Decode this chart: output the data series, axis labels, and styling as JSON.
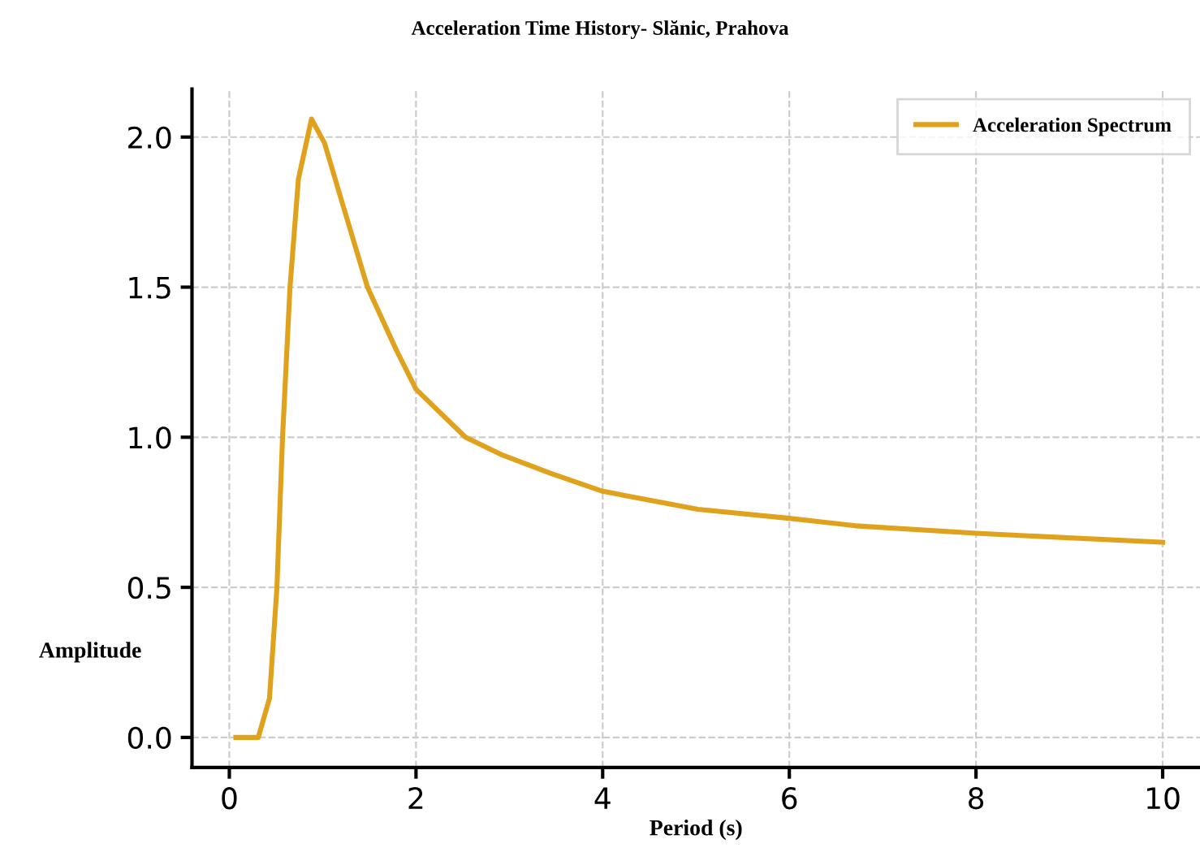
{
  "chart_data": {
    "type": "line",
    "title": "Acceleration Time History- Slănic, Prahova",
    "xlabel": "Period (s)",
    "ylabel": "Amplitude",
    "series": [
      {
        "name": "Acceleration Spectrum",
        "color": "#e0a21c",
        "x": [
          0.07,
          0.31,
          0.43,
          0.51,
          0.57,
          0.65,
          0.74,
          0.88,
          1.02,
          1.22,
          1.48,
          1.79,
          2.0,
          2.53,
          2.93,
          3.44,
          4.0,
          5.02,
          6.0,
          6.71,
          8.0,
          10.0
        ],
        "values": [
          0.0,
          0.0,
          0.13,
          0.5,
          1.0,
          1.5,
          1.86,
          2.06,
          1.98,
          1.77,
          1.5,
          1.29,
          1.16,
          1.0,
          0.94,
          0.88,
          0.82,
          0.76,
          0.73,
          0.705,
          0.68,
          0.65
        ]
      }
    ],
    "xlim": [
      -0.4,
      10.4
    ],
    "xticks": [
      0,
      2,
      4,
      6,
      8,
      10
    ],
    "ylim": [
      -0.1,
      2.16
    ],
    "yticks": [
      {
        "value": 0,
        "label": "0.0"
      },
      0.5,
      {
        "value": 1,
        "label": "1.0"
      },
      1.5,
      {
        "value": 2,
        "label": "2.0"
      }
    ],
    "grid": true,
    "legend": "top right",
    "line_style": "solid",
    "marker": "none"
  }
}
